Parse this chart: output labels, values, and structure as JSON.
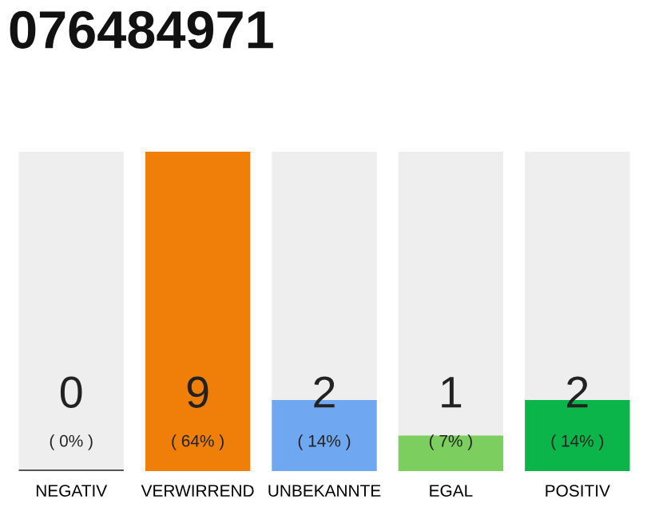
{
  "chart_data": {
    "type": "bar",
    "title": "076484971",
    "categories": [
      "NEGATIV",
      "VERWIRREND",
      "UNBEKANNTE",
      "EGAL",
      "POSITIV"
    ],
    "values": [
      0,
      9,
      2,
      1,
      2
    ],
    "colors": [
      "#555555",
      "#f07f0a",
      "#6fa8f0",
      "#7ccf5f",
      "#0cb54a"
    ],
    "value_labels": [
      "0",
      "9",
      "2",
      "1",
      "2"
    ],
    "annotations": [
      "( 0% )",
      "( 64% )",
      "( 14% )",
      "( 7% )",
      "( 14% )"
    ],
    "grid": false,
    "legend": false
  }
}
